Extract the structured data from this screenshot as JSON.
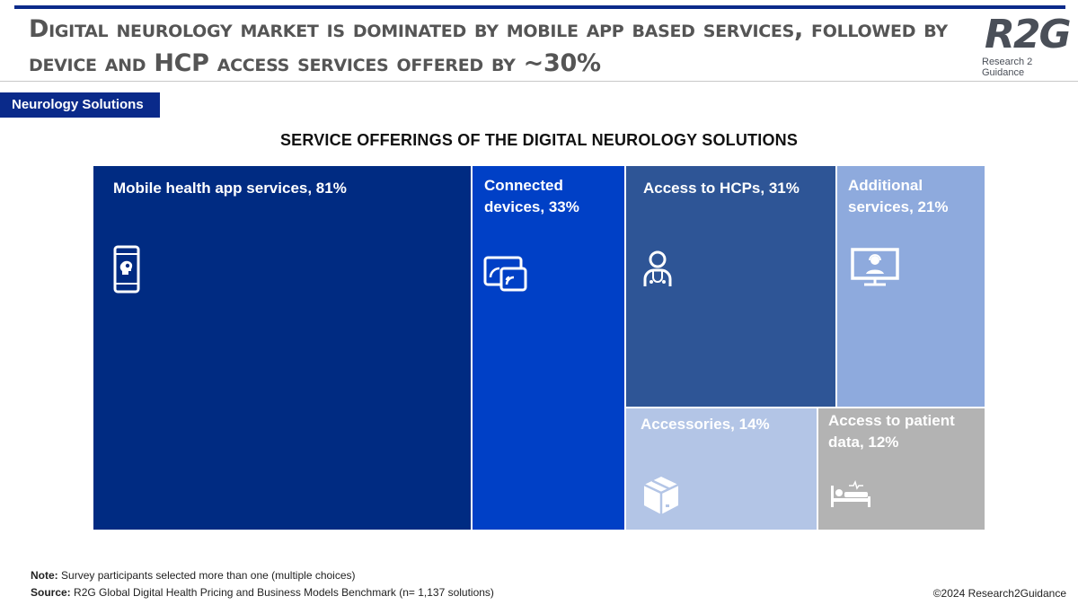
{
  "header": {
    "title": "Digital neurology market is dominated by mobile app based services, followed by device and HCP access services offered by ~30%",
    "logo_text": "R2G",
    "logo_subtitle": "Research 2 Guidance",
    "section_tag": "Neurology Solutions"
  },
  "chart_data": {
    "type": "treemap",
    "title": "SERVICE OFFERINGS OF THE DIGITAL NEUROLOGY SOLUTIONS",
    "unit": "%",
    "items": [
      {
        "name": "Mobile health app services",
        "value": 81,
        "color": "#002b82",
        "icon": "smartphone-brain-icon"
      },
      {
        "name": "Connected devices",
        "value": 33,
        "color": "#0040c6",
        "icon": "connected-device-icon"
      },
      {
        "name": "Access to HCPs",
        "value": 31,
        "color": "#2e5596",
        "icon": "doctor-icon"
      },
      {
        "name": "Additional services",
        "value": 21,
        "color": "#8eaadd",
        "icon": "monitor-support-icon"
      },
      {
        "name": "Accessories",
        "value": 14,
        "color": "#b3c5e6",
        "icon": "box-icon"
      },
      {
        "name": "Access to patient data",
        "value": 12,
        "color": "#b3b3b3",
        "icon": "hospital-bed-icon"
      }
    ]
  },
  "footer": {
    "note_label": "Note:",
    "note_text": "Survey participants selected more than one (multiple choices)",
    "source_label": "Source:",
    "source_text": "R2G Global Digital Health Pricing and Business Models Benchmark (n= 1,137 solutions)",
    "copyright": "©2024 Research2Guidance"
  }
}
